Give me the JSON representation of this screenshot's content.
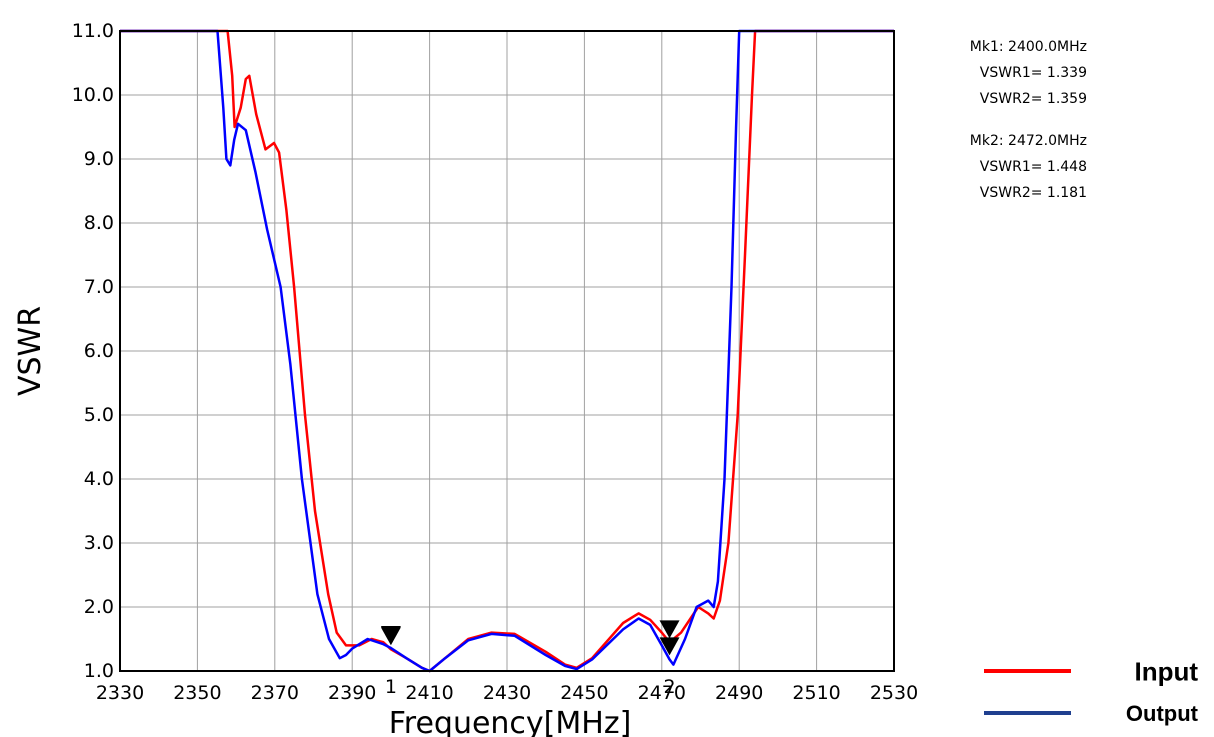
{
  "chart_data": {
    "type": "line",
    "title": "",
    "xlabel": "Frequency[MHz]",
    "ylabel": "VSWR",
    "xlim": [
      2330,
      2530
    ],
    "ylim": [
      1.0,
      11.0
    ],
    "grid": true,
    "x_ticks": [
      "2330",
      "2350",
      "2370",
      "2390",
      "2410",
      "2430",
      "2450",
      "2470",
      "2490",
      "2510",
      "2530"
    ],
    "y_ticks": [
      "1.0",
      "2.0",
      "3.0",
      "4.0",
      "5.0",
      "6.0",
      "7.0",
      "8.0",
      "9.0",
      "10.0",
      "11.0"
    ],
    "series": [
      {
        "name": "Input",
        "color": "#ff0000",
        "points": [
          [
            2357.8,
            11.0
          ],
          [
            2359.0,
            10.3
          ],
          [
            2359.6,
            9.5
          ],
          [
            2361.2,
            9.8
          ],
          [
            2362.5,
            10.25
          ],
          [
            2363.4,
            10.3
          ],
          [
            2365.2,
            9.7
          ],
          [
            2367.6,
            9.15
          ],
          [
            2369.8,
            9.25
          ],
          [
            2371.1,
            9.1
          ],
          [
            2373.0,
            8.2
          ],
          [
            2375.0,
            7.0
          ],
          [
            2377.8,
            5.0
          ],
          [
            2380.4,
            3.5
          ],
          [
            2383.8,
            2.2
          ],
          [
            2386.0,
            1.6
          ],
          [
            2388.4,
            1.4
          ],
          [
            2391.8,
            1.4
          ],
          [
            2395.0,
            1.5
          ],
          [
            2398.0,
            1.45
          ],
          [
            2400.0,
            1.339
          ],
          [
            2404.0,
            1.2
          ],
          [
            2408.0,
            1.05
          ],
          [
            2410.0,
            1.0
          ],
          [
            2414.0,
            1.2
          ],
          [
            2420.0,
            1.5
          ],
          [
            2426.0,
            1.6
          ],
          [
            2432.0,
            1.58
          ],
          [
            2440.0,
            1.3
          ],
          [
            2445.0,
            1.1
          ],
          [
            2448.0,
            1.05
          ],
          [
            2452.0,
            1.2
          ],
          [
            2460.0,
            1.75
          ],
          [
            2464.0,
            1.9
          ],
          [
            2467.0,
            1.8
          ],
          [
            2470.0,
            1.6
          ],
          [
            2472.0,
            1.448
          ],
          [
            2475.0,
            1.6
          ],
          [
            2479.4,
            2.0
          ],
          [
            2482.0,
            1.9
          ],
          [
            2483.4,
            1.82
          ],
          [
            2485.0,
            2.1
          ],
          [
            2487.2,
            3.0
          ],
          [
            2489.6,
            5.0
          ],
          [
            2491.5,
            7.5
          ],
          [
            2493.3,
            10.0
          ],
          [
            2494.1,
            11.0
          ]
        ]
      },
      {
        "name": "Output",
        "color": "#0000ff",
        "points": [
          [
            2355.2,
            11.0
          ],
          [
            2356.7,
            9.8
          ],
          [
            2357.5,
            9.0
          ],
          [
            2358.5,
            8.9
          ],
          [
            2359.5,
            9.3
          ],
          [
            2360.5,
            9.55
          ],
          [
            2362.5,
            9.45
          ],
          [
            2365.0,
            8.8
          ],
          [
            2368.0,
            7.9
          ],
          [
            2371.5,
            7.0
          ],
          [
            2374.0,
            5.8
          ],
          [
            2377.0,
            4.0
          ],
          [
            2381.0,
            2.2
          ],
          [
            2384.0,
            1.5
          ],
          [
            2386.8,
            1.2
          ],
          [
            2388.4,
            1.25
          ],
          [
            2390.0,
            1.35
          ],
          [
            2394.0,
            1.5
          ],
          [
            2398.0,
            1.42
          ],
          [
            2400.0,
            1.359
          ],
          [
            2404.0,
            1.2
          ],
          [
            2408.0,
            1.05
          ],
          [
            2410.0,
            1.0
          ],
          [
            2414.0,
            1.2
          ],
          [
            2420.0,
            1.48
          ],
          [
            2426.0,
            1.58
          ],
          [
            2432.0,
            1.55
          ],
          [
            2440.0,
            1.25
          ],
          [
            2445.0,
            1.08
          ],
          [
            2448.0,
            1.03
          ],
          [
            2452.0,
            1.18
          ],
          [
            2460.0,
            1.65
          ],
          [
            2464.0,
            1.82
          ],
          [
            2467.0,
            1.72
          ],
          [
            2470.0,
            1.4
          ],
          [
            2472.0,
            1.181
          ],
          [
            2473.0,
            1.1
          ],
          [
            2476.0,
            1.5
          ],
          [
            2479.0,
            2.0
          ],
          [
            2482.0,
            2.1
          ],
          [
            2483.4,
            2.0
          ],
          [
            2484.5,
            2.4
          ],
          [
            2486.2,
            4.0
          ],
          [
            2488.0,
            7.0
          ],
          [
            2489.2,
            9.5
          ],
          [
            2490.0,
            11.0
          ]
        ]
      }
    ],
    "markers": [
      {
        "label": "1",
        "x": 2400.0,
        "readout": [
          "Mk1: 2400.0MHz",
          "VSWR1= 1.339",
          "VSWR2= 1.359"
        ]
      },
      {
        "label": "2",
        "x": 2472.0,
        "readout": [
          "Mk2: 2472.0MHz",
          "VSWR1= 1.448",
          "VSWR2= 1.181"
        ]
      }
    ],
    "legend": {
      "placement": "bottom-right",
      "items": [
        {
          "label": "Input",
          "color": "#ff0000"
        },
        {
          "label": "Output",
          "color": "#1f3f8f"
        }
      ]
    }
  }
}
